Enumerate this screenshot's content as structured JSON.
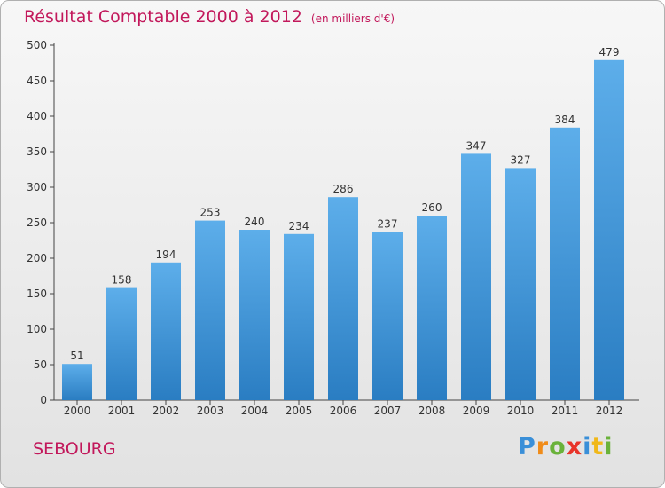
{
  "header": {
    "title": "Résultat Comptable 2000 à 2012",
    "unit": "(en milliers d'€)"
  },
  "town": "SEBOURG",
  "logo": {
    "letters": [
      "P",
      "r",
      "o",
      "x",
      "i",
      "t",
      "i"
    ],
    "colors": [
      "#3a8fd8",
      "#f08c1a",
      "#6ab23a",
      "#e8342a",
      "#3a8fd8",
      "#f0b81a",
      "#6ab23a"
    ]
  },
  "colors": {
    "bar_top": "#5daeea",
    "bar_bottom": "#2a7dc2",
    "title": "#c2185b"
  },
  "chart_data": {
    "type": "bar",
    "categories": [
      "2000",
      "2001",
      "2002",
      "2003",
      "2004",
      "2005",
      "2006",
      "2007",
      "2008",
      "2009",
      "2010",
      "2011",
      "2012"
    ],
    "values": [
      51,
      158,
      194,
      253,
      240,
      234,
      286,
      237,
      260,
      347,
      327,
      384,
      479
    ],
    "title": "Résultat Comptable 2000 à 2012",
    "xlabel": "",
    "ylabel": "",
    "ylim": [
      0,
      500
    ],
    "yticks": [
      0,
      50,
      100,
      150,
      200,
      250,
      300,
      350,
      400,
      450,
      500
    ],
    "grid": false,
    "legend": "none"
  }
}
